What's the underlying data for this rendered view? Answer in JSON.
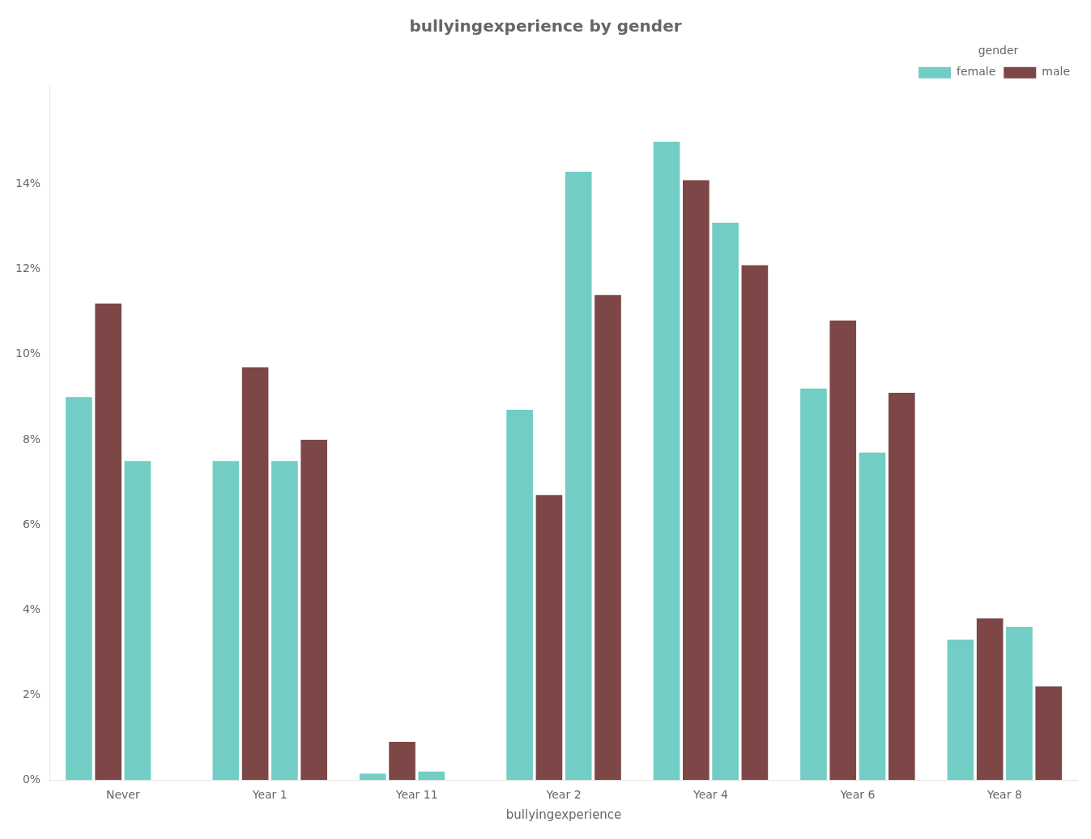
{
  "chart_data": {
    "type": "bar",
    "title": "bullyingexperience by gender",
    "xlabel": "bullyingexperience",
    "legend_title": "gender",
    "categories": [
      "Never",
      "Year 1",
      "Year 11",
      "Year 2",
      "Year 4",
      "Year 6",
      "Year 8"
    ],
    "series": [
      {
        "name": "female",
        "color": "#72CEC4",
        "values": [
          0.09,
          0.075,
          0.0015,
          0.087,
          0.15,
          0.092,
          0.033
        ]
      },
      {
        "name": "male",
        "color": "#7D4747",
        "values": [
          0.112,
          0.097,
          0.009,
          0.067,
          0.141,
          0.108,
          0.038
        ]
      },
      {
        "color": "#72CEC4",
        "values": [
          0.075,
          0.075,
          0.002,
          0.143,
          0.131,
          0.077,
          0.036
        ]
      },
      {
        "color": "#7D4747",
        "values": [
          0.0,
          0.08,
          0.0,
          0.114,
          0.121,
          0.091,
          0.022
        ]
      }
    ],
    "ylim": [
      0,
      0.163
    ],
    "yticks": [
      {
        "value": 0.0,
        "label": "0%"
      },
      {
        "value": 0.02,
        "label": "2%"
      },
      {
        "value": 0.04,
        "label": "4%"
      },
      {
        "value": 0.06,
        "label": "6%"
      },
      {
        "value": 0.08,
        "label": "8%"
      },
      {
        "value": 0.1,
        "label": "10%"
      },
      {
        "value": 0.12,
        "label": "12%"
      },
      {
        "value": 0.14,
        "label": "14%"
      }
    ],
    "grid": false,
    "legend": "upper right"
  }
}
